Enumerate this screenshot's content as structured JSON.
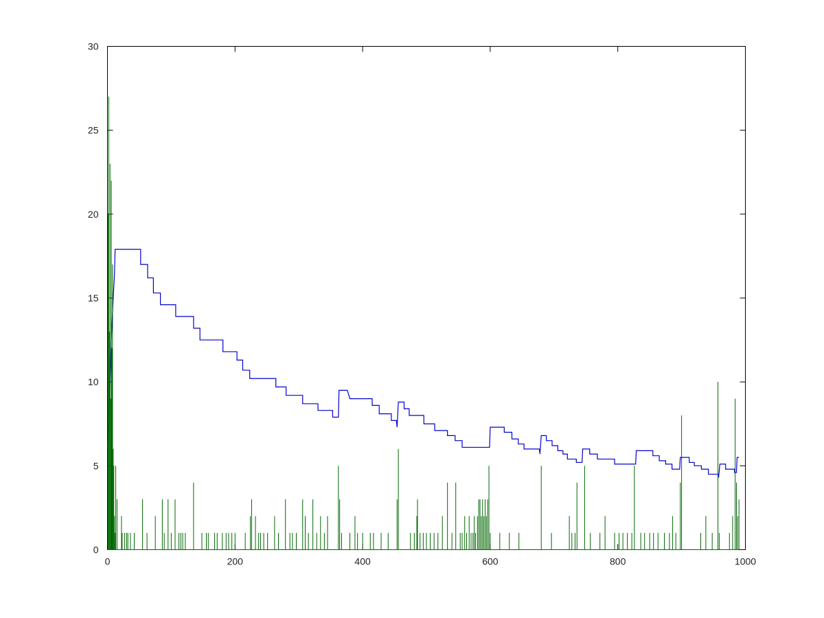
{
  "chart_data": {
    "type": "line",
    "title": "",
    "xlabel": "",
    "ylabel": "",
    "xlim": [
      0,
      1000
    ],
    "ylim": [
      0,
      30
    ],
    "grid": false,
    "legend": "none",
    "x_ticks": [
      0,
      200,
      400,
      600,
      800,
      1000
    ],
    "y_ticks": [
      0,
      5,
      10,
      15,
      20,
      25,
      30
    ],
    "series": [
      {
        "color": "#0000cc",
        "style": "step",
        "points": [
          [
            0,
            6
          ],
          [
            2,
            7.2
          ],
          [
            4,
            10
          ],
          [
            6,
            12.5
          ],
          [
            9,
            15
          ],
          [
            11,
            16.4
          ],
          [
            12,
            17.9
          ],
          [
            52,
            17.9
          ],
          [
            52,
            17
          ],
          [
            63,
            17
          ],
          [
            63,
            16.2
          ],
          [
            72,
            16.2
          ],
          [
            72,
            15.3
          ],
          [
            83,
            15.3
          ],
          [
            83,
            14.6
          ],
          [
            107,
            14.6
          ],
          [
            107,
            13.9
          ],
          [
            135,
            13.9
          ],
          [
            135,
            13.2
          ],
          [
            145,
            13.2
          ],
          [
            145,
            12.5
          ],
          [
            181,
            12.5
          ],
          [
            181,
            11.8
          ],
          [
            203,
            11.8
          ],
          [
            203,
            11.3
          ],
          [
            212,
            11.3
          ],
          [
            212,
            10.7
          ],
          [
            223,
            10.7
          ],
          [
            223,
            10.2
          ],
          [
            264,
            10.2
          ],
          [
            264,
            9.7
          ],
          [
            280,
            9.7
          ],
          [
            280,
            9.2
          ],
          [
            306,
            9.2
          ],
          [
            306,
            8.7
          ],
          [
            330,
            8.7
          ],
          [
            330,
            8.3
          ],
          [
            353,
            8.3
          ],
          [
            353,
            7.9
          ],
          [
            362,
            7.9
          ],
          [
            363,
            9.5
          ],
          [
            376,
            9.5
          ],
          [
            380,
            9
          ],
          [
            415,
            9
          ],
          [
            415,
            8.6
          ],
          [
            426,
            8.6
          ],
          [
            426,
            8.1
          ],
          [
            445,
            8.1
          ],
          [
            445,
            7.7
          ],
          [
            453,
            7.7
          ],
          [
            454,
            7.3
          ],
          [
            456,
            8.8
          ],
          [
            465,
            8.8
          ],
          [
            465,
            8.4
          ],
          [
            473,
            8.4
          ],
          [
            473,
            8
          ],
          [
            496,
            8
          ],
          [
            496,
            7.5
          ],
          [
            513,
            7.5
          ],
          [
            513,
            7.1
          ],
          [
            533,
            7.1
          ],
          [
            533,
            6.8
          ],
          [
            545,
            6.8
          ],
          [
            545,
            6.5
          ],
          [
            556,
            6.5
          ],
          [
            556,
            6.1
          ],
          [
            599,
            6.1
          ],
          [
            600,
            7.3
          ],
          [
            622,
            7.3
          ],
          [
            622,
            7
          ],
          [
            634,
            7
          ],
          [
            634,
            6.6
          ],
          [
            644,
            6.6
          ],
          [
            644,
            6.3
          ],
          [
            653,
            6.3
          ],
          [
            653,
            6
          ],
          [
            677,
            6
          ],
          [
            678,
            5.7
          ],
          [
            680,
            6.8
          ],
          [
            688,
            6.8
          ],
          [
            688,
            6.5
          ],
          [
            697,
            6.5
          ],
          [
            697,
            6.2
          ],
          [
            706,
            6.2
          ],
          [
            706,
            5.9
          ],
          [
            714,
            5.9
          ],
          [
            714,
            5.7
          ],
          [
            721,
            5.7
          ],
          [
            721,
            5.4
          ],
          [
            735,
            5.4
          ],
          [
            735,
            5.2
          ],
          [
            744,
            5.2
          ],
          [
            745,
            6
          ],
          [
            756,
            6
          ],
          [
            756,
            5.7
          ],
          [
            768,
            5.7
          ],
          [
            768,
            5.4
          ],
          [
            795,
            5.4
          ],
          [
            795,
            5.1
          ],
          [
            828,
            5.1
          ],
          [
            829,
            5.9
          ],
          [
            855,
            5.9
          ],
          [
            855,
            5.6
          ],
          [
            865,
            5.6
          ],
          [
            865,
            5.3
          ],
          [
            875,
            5.3
          ],
          [
            875,
            5.1
          ],
          [
            885,
            5.1
          ],
          [
            885,
            4.8
          ],
          [
            897,
            4.8
          ],
          [
            898,
            5.5
          ],
          [
            912,
            5.5
          ],
          [
            912,
            5.2
          ],
          [
            920,
            5.2
          ],
          [
            920,
            5
          ],
          [
            931,
            5
          ],
          [
            931,
            4.8
          ],
          [
            942,
            4.8
          ],
          [
            942,
            4.5
          ],
          [
            957,
            4.5
          ],
          [
            958,
            4.3
          ],
          [
            960,
            5.1
          ],
          [
            969,
            5.1
          ],
          [
            969,
            4.8
          ],
          [
            983,
            4.8
          ],
          [
            983,
            4.6
          ],
          [
            986,
            4.6
          ],
          [
            987,
            5.5
          ],
          [
            990,
            5.5
          ]
        ]
      },
      {
        "color": "#006600",
        "style": "spikes",
        "baseline": 0,
        "spikes": [
          [
            1,
            20
          ],
          [
            2,
            27
          ],
          [
            3,
            13
          ],
          [
            4,
            23
          ],
          [
            5,
            9
          ],
          [
            6,
            22
          ],
          [
            7,
            12
          ],
          [
            8,
            17
          ],
          [
            9,
            6
          ],
          [
            10,
            5
          ],
          [
            11,
            2
          ],
          [
            12,
            1
          ],
          [
            13,
            5
          ],
          [
            15,
            3
          ],
          [
            22,
            2
          ],
          [
            23,
            1
          ],
          [
            27,
            1
          ],
          [
            30,
            1
          ],
          [
            32,
            1
          ],
          [
            36,
            1
          ],
          [
            42,
            1
          ],
          [
            55,
            3
          ],
          [
            62,
            1
          ],
          [
            75,
            2
          ],
          [
            86,
            3
          ],
          [
            89,
            1
          ],
          [
            95,
            3
          ],
          [
            100,
            1
          ],
          [
            106,
            3
          ],
          [
            112,
            1
          ],
          [
            115,
            1
          ],
          [
            118,
            1
          ],
          [
            122,
            1
          ],
          [
            135,
            4
          ],
          [
            148,
            1
          ],
          [
            155,
            1
          ],
          [
            158,
            1
          ],
          [
            168,
            1
          ],
          [
            172,
            1
          ],
          [
            180,
            1
          ],
          [
            186,
            1
          ],
          [
            190,
            1
          ],
          [
            195,
            1
          ],
          [
            200,
            1
          ],
          [
            216,
            1
          ],
          [
            224,
            2
          ],
          [
            226,
            3
          ],
          [
            232,
            2
          ],
          [
            237,
            1
          ],
          [
            240,
            1
          ],
          [
            245,
            1
          ],
          [
            251,
            1
          ],
          [
            262,
            2
          ],
          [
            268,
            1
          ],
          [
            279,
            3
          ],
          [
            286,
            1
          ],
          [
            290,
            1
          ],
          [
            296,
            1
          ],
          [
            306,
            3
          ],
          [
            310,
            2
          ],
          [
            315,
            1
          ],
          [
            322,
            3
          ],
          [
            328,
            1
          ],
          [
            334,
            2
          ],
          [
            340,
            1
          ],
          [
            345,
            2
          ],
          [
            362,
            5
          ],
          [
            364,
            3
          ],
          [
            367,
            1
          ],
          [
            380,
            1
          ],
          [
            388,
            2
          ],
          [
            392,
            1
          ],
          [
            400,
            1
          ],
          [
            412,
            1
          ],
          [
            417,
            1
          ],
          [
            429,
            1
          ],
          [
            440,
            1
          ],
          [
            454,
            3
          ],
          [
            456,
            6
          ],
          [
            475,
            1
          ],
          [
            481,
            1
          ],
          [
            485,
            2
          ],
          [
            486,
            3
          ],
          [
            490,
            1
          ],
          [
            495,
            1
          ],
          [
            500,
            1
          ],
          [
            506,
            1
          ],
          [
            512,
            1
          ],
          [
            518,
            1
          ],
          [
            525,
            2
          ],
          [
            533,
            4
          ],
          [
            540,
            1
          ],
          [
            546,
            4
          ],
          [
            553,
            1
          ],
          [
            556,
            1
          ],
          [
            560,
            2
          ],
          [
            563,
            1
          ],
          [
            567,
            2
          ],
          [
            570,
            1
          ],
          [
            573,
            1
          ],
          [
            575,
            2
          ],
          [
            577,
            1
          ],
          [
            580,
            2
          ],
          [
            582,
            3
          ],
          [
            584,
            3
          ],
          [
            586,
            2
          ],
          [
            588,
            3
          ],
          [
            590,
            2
          ],
          [
            592,
            3
          ],
          [
            594,
            2
          ],
          [
            596,
            3
          ],
          [
            598,
            5
          ],
          [
            600,
            1
          ],
          [
            615,
            1
          ],
          [
            630,
            1
          ],
          [
            645,
            1
          ],
          [
            680,
            5
          ],
          [
            696,
            1
          ],
          [
            724,
            2
          ],
          [
            728,
            1
          ],
          [
            733,
            1
          ],
          [
            736,
            4
          ],
          [
            748,
            5
          ],
          [
            757,
            1
          ],
          [
            772,
            1
          ],
          [
            780,
            2
          ],
          [
            795,
            1
          ],
          [
            802,
            1
          ],
          [
            808,
            1
          ],
          [
            815,
            1
          ],
          [
            822,
            1
          ],
          [
            826,
            5
          ],
          [
            836,
            1
          ],
          [
            842,
            1
          ],
          [
            850,
            1
          ],
          [
            856,
            1
          ],
          [
            863,
            1
          ],
          [
            873,
            1
          ],
          [
            881,
            1
          ],
          [
            886,
            2
          ],
          [
            891,
            1
          ],
          [
            898,
            4
          ],
          [
            900,
            8
          ],
          [
            930,
            1
          ],
          [
            938,
            2
          ],
          [
            948,
            1
          ],
          [
            957,
            10
          ],
          [
            959,
            1
          ],
          [
            975,
            1
          ],
          [
            980,
            2
          ],
          [
            984,
            9
          ],
          [
            986,
            4
          ],
          [
            988,
            2
          ],
          [
            990,
            3
          ]
        ]
      }
    ]
  }
}
